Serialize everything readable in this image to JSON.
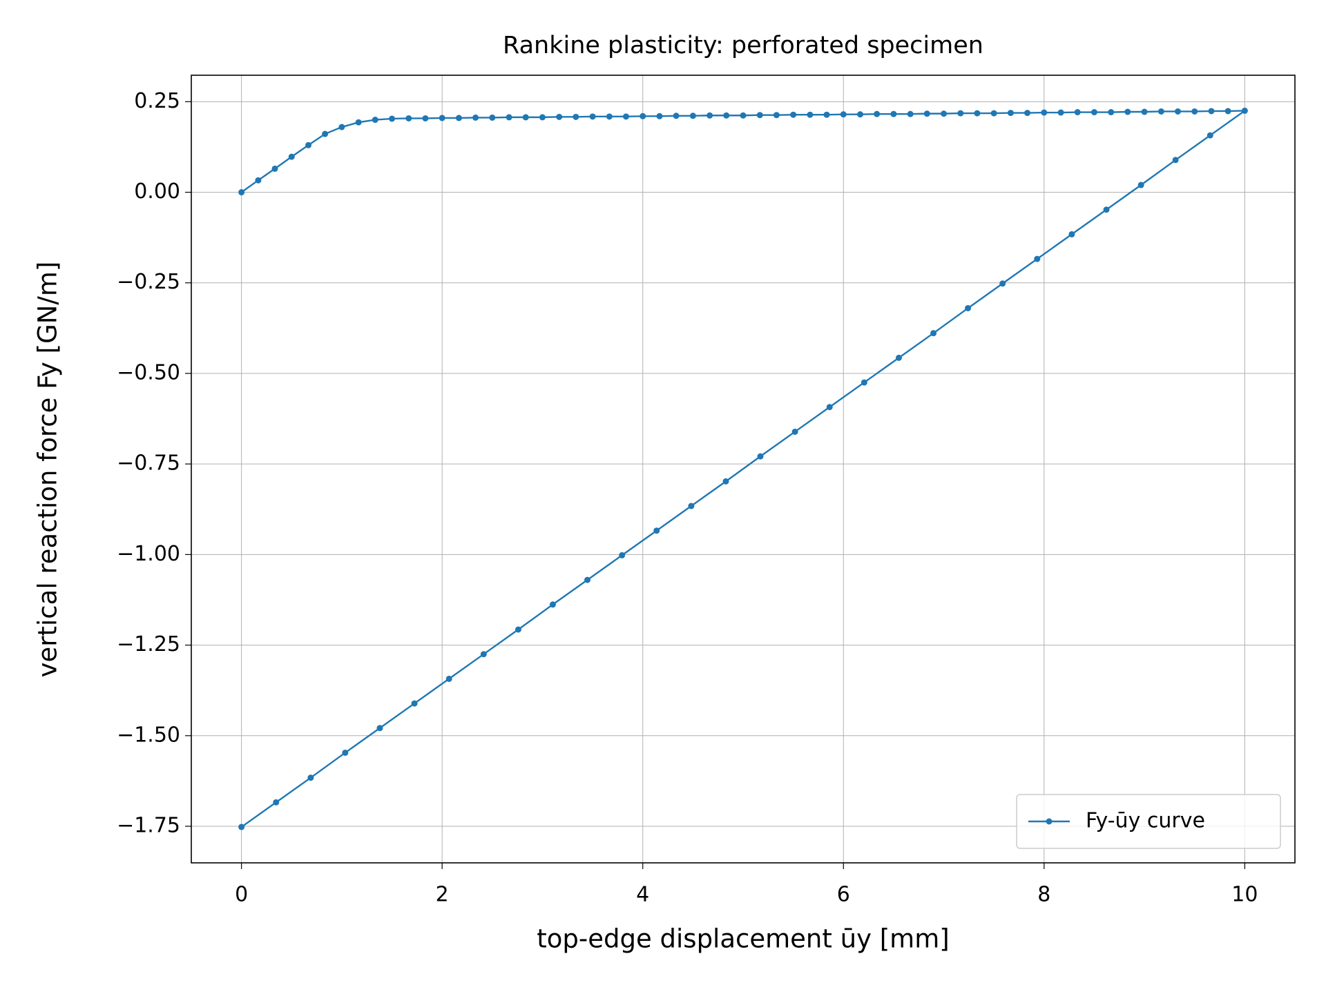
{
  "chart_data": {
    "type": "line",
    "title": "Rankine plasticity: perforated specimen",
    "xlabel": "top-edge displacement ūy [mm]",
    "ylabel": "vertical reaction force Fy [GN/m]",
    "xlim": [
      -0.5,
      10.5
    ],
    "ylim": [
      -1.851,
      0.323
    ],
    "xticks": [
      0,
      2,
      4,
      6,
      8,
      10
    ],
    "yticks": [
      0.25,
      {
        "value": 0,
        "label": "0.00"
      },
      {
        "value": -0.25,
        "label": "−0.25"
      },
      {
        "value": -0.5,
        "label": "−0.50"
      },
      {
        "value": -0.75,
        "label": "−0.75"
      },
      {
        "value": -1,
        "label": "−1.00"
      },
      {
        "value": -1.25,
        "label": "−1.25"
      },
      {
        "value": -1.5,
        "label": "−1.50"
      },
      {
        "value": -1.75,
        "label": "−1.75"
      }
    ],
    "grid": true,
    "legend_loc": "lower right",
    "series": [
      {
        "name": "Fy-ūy curve",
        "color": "#1f77b4",
        "x": [
          0,
          0.167,
          0.333,
          0.5,
          0.667,
          0.833,
          1,
          1.167,
          1.333,
          1.5,
          1.667,
          1.833,
          2,
          2.167,
          2.333,
          2.5,
          2.667,
          2.833,
          3,
          3.167,
          3.333,
          3.5,
          3.667,
          3.833,
          4,
          4.167,
          4.333,
          4.5,
          4.667,
          4.833,
          5,
          5.167,
          5.333,
          5.5,
          5.667,
          5.833,
          6,
          6.167,
          6.333,
          6.5,
          6.667,
          6.833,
          7,
          7.167,
          7.333,
          7.5,
          7.667,
          7.833,
          8,
          8.167,
          8.333,
          8.5,
          8.667,
          8.833,
          9,
          9.167,
          9.333,
          9.5,
          9.667,
          9.833,
          10,
          9.655,
          9.31,
          8.966,
          8.621,
          8.276,
          7.931,
          7.586,
          7.241,
          6.897,
          6.552,
          6.207,
          5.862,
          5.517,
          5.172,
          4.828,
          4.483,
          4.138,
          3.793,
          3.448,
          3.103,
          2.759,
          2.414,
          2.069,
          1.724,
          1.379,
          1.034,
          0.69,
          0.345,
          0
        ],
        "values": [
          0,
          0.033,
          0.065,
          0.098,
          0.13,
          0.161,
          0.18,
          0.193,
          0.2,
          0.203,
          0.204,
          0.204,
          0.205,
          0.205,
          0.206,
          0.206,
          0.207,
          0.207,
          0.207,
          0.208,
          0.208,
          0.209,
          0.209,
          0.209,
          0.21,
          0.21,
          0.211,
          0.211,
          0.212,
          0.212,
          0.212,
          0.213,
          0.213,
          0.214,
          0.214,
          0.214,
          0.215,
          0.215,
          0.216,
          0.216,
          0.216,
          0.217,
          0.217,
          0.218,
          0.218,
          0.218,
          0.219,
          0.219,
          0.22,
          0.22,
          0.221,
          0.221,
          0.221,
          0.222,
          0.222,
          0.223,
          0.223,
          0.223,
          0.224,
          0.224,
          0.225,
          0.157,
          0.089,
          0.02,
          -0.048,
          -0.116,
          -0.184,
          -0.252,
          -0.32,
          -0.389,
          -0.457,
          -0.525,
          -0.593,
          -0.661,
          -0.729,
          -0.798,
          -0.866,
          -0.934,
          -1.002,
          -1.07,
          -1.138,
          -1.207,
          -1.275,
          -1.343,
          -1.411,
          -1.479,
          -1.547,
          -1.616,
          -1.684,
          -1.752
        ]
      }
    ]
  }
}
